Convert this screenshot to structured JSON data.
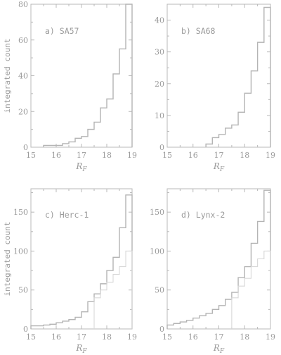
{
  "chart_data": [
    {
      "type": "line",
      "step": true,
      "label": "a) SA57",
      "xlabel": "R_F",
      "ylabel": "integrated count",
      "xlim": [
        15,
        19
      ],
      "ylim": [
        0,
        80
      ],
      "xticks": [
        15,
        16,
        17,
        18,
        19
      ],
      "yticks": [
        0,
        20,
        40,
        60,
        80
      ],
      "grid": false,
      "series": [
        {
          "x": [
            15.5,
            15.75,
            16.0,
            16.25,
            16.5,
            16.75,
            17.0,
            17.25,
            17.5,
            17.75,
            18.0,
            18.25,
            18.5,
            18.75,
            19.0
          ],
          "y": [
            1,
            1,
            1,
            2,
            3,
            5,
            6,
            10,
            14,
            22,
            27,
            41,
            55,
            80,
            80
          ]
        }
      ]
    },
    {
      "type": "line",
      "step": true,
      "label": "b) SA68",
      "xlabel": "R_F",
      "ylabel": "",
      "xlim": [
        15,
        19
      ],
      "ylim": [
        0,
        45
      ],
      "xticks": [
        15,
        16,
        17,
        18,
        19
      ],
      "yticks": [
        0,
        10,
        20,
        30,
        40
      ],
      "grid": false,
      "series": [
        {
          "x": [
            16.5,
            16.75,
            17.0,
            17.25,
            17.5,
            17.75,
            18.0,
            18.25,
            18.5,
            18.75,
            19.0
          ],
          "y": [
            1,
            3,
            4,
            6,
            7,
            11,
            17,
            24,
            33,
            44,
            44
          ]
        }
      ]
    },
    {
      "type": "line",
      "step": true,
      "label": "c) Herc-1",
      "xlabel": "R_F",
      "ylabel": "integrated count",
      "xlim": [
        15,
        19
      ],
      "ylim": [
        0,
        180
      ],
      "xticks": [
        15,
        16,
        17,
        18,
        19
      ],
      "yticks": [
        0,
        50,
        100,
        150
      ],
      "grid": false,
      "series": [
        {
          "x": [
            15.0,
            15.5,
            15.75,
            16.0,
            16.25,
            16.5,
            16.75,
            17.0,
            17.25,
            17.5,
            17.75,
            18.0,
            18.25,
            18.5,
            18.75,
            19.0
          ],
          "y": [
            4,
            5,
            6,
            8,
            10,
            12,
            15,
            22,
            35,
            45,
            58,
            75,
            92,
            130,
            172,
            172
          ]
        },
        {
          "x": [
            17.5,
            17.75,
            18.0,
            18.25,
            18.5,
            18.75,
            19.0
          ],
          "y": [
            40,
            50,
            60,
            70,
            80,
            100,
            100
          ]
        }
      ]
    },
    {
      "type": "line",
      "step": true,
      "label": "d) Lynx-2",
      "xlabel": "R_F",
      "ylabel": "",
      "xlim": [
        15,
        19
      ],
      "ylim": [
        0,
        180
      ],
      "xticks": [
        15,
        16,
        17,
        18,
        19
      ],
      "yticks": [
        0,
        50,
        100,
        150
      ],
      "grid": false,
      "series": [
        {
          "x": [
            15.0,
            15.25,
            15.5,
            15.75,
            16.0,
            16.25,
            16.5,
            16.75,
            17.0,
            17.25,
            17.5,
            17.75,
            18.0,
            18.25,
            18.5,
            18.75,
            19.0
          ],
          "y": [
            5,
            7,
            9,
            11,
            14,
            17,
            20,
            25,
            30,
            38,
            47,
            66,
            80,
            110,
            138,
            178,
            178
          ]
        },
        {
          "x": [
            17.5,
            17.75,
            18.0,
            18.25,
            18.5,
            18.75,
            19.0
          ],
          "y": [
            40,
            55,
            65,
            80,
            90,
            100,
            100
          ]
        }
      ]
    }
  ]
}
